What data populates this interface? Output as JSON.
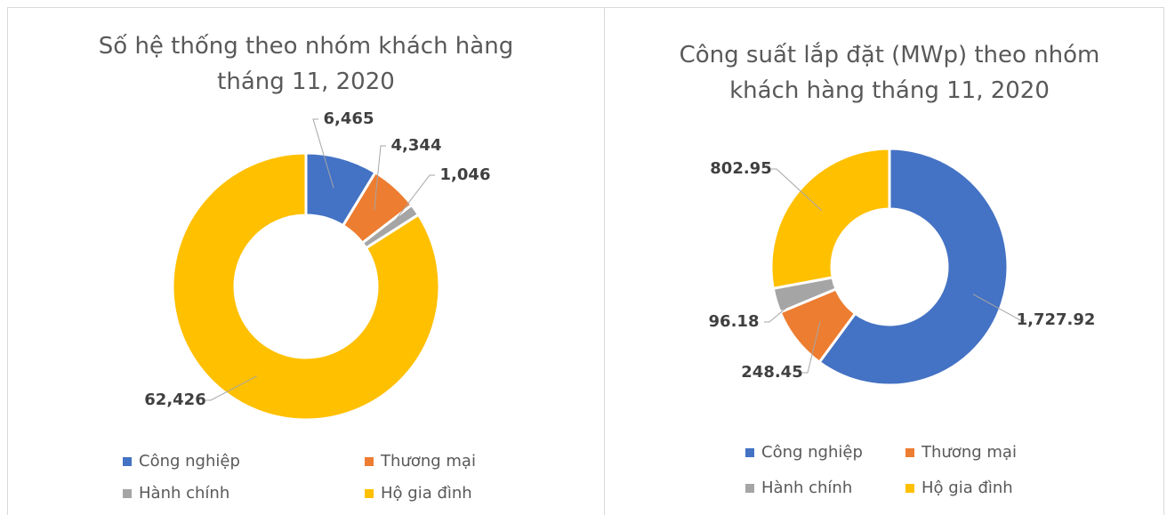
{
  "chart_data": [
    {
      "type": "donut",
      "title": "Số hệ thống theo nhóm khách hàng tháng 11, 2020",
      "categories": [
        "Công nghiệp",
        "Thương mại",
        "Hành chính",
        "Hộ gia đình"
      ],
      "values": [
        6465,
        4344,
        1046,
        62426
      ],
      "value_labels": [
        "6,465",
        "4,344",
        "1,046",
        "62,426"
      ],
      "colors": [
        "#4472c4",
        "#ed7d31",
        "#a5a5a5",
        "#ffc000"
      ]
    },
    {
      "type": "donut",
      "title": "Công suất lắp đặt (MWp) theo nhóm khách hàng tháng 11, 2020",
      "categories": [
        "Công nghiệp",
        "Thương mại",
        "Hành chính",
        "Hộ gia đình"
      ],
      "values": [
        1727.92,
        248.45,
        96.18,
        802.95
      ],
      "value_labels": [
        "1,727.92",
        "248.45",
        "96.18",
        "802.95"
      ],
      "colors": [
        "#4472c4",
        "#ed7d31",
        "#a5a5a5",
        "#ffc000"
      ]
    }
  ]
}
